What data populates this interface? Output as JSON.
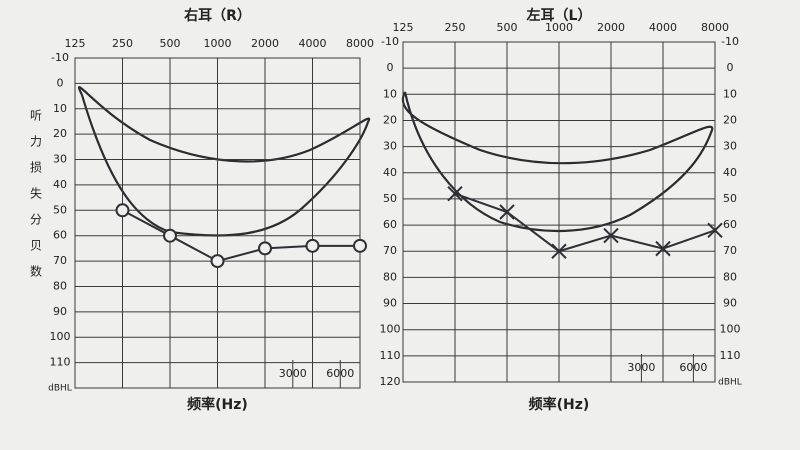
{
  "chart_data": [
    {
      "type": "line",
      "title": "右耳（R）",
      "x_axis_label": "频率(Hz)",
      "y_axis_label": "听力损失分贝数",
      "y_unit_label": "dBHL",
      "x": [
        250,
        500,
        1000,
        2000,
        4000,
        8000
      ],
      "xlim": [
        125,
        8000
      ],
      "xticks": [
        125,
        250,
        500,
        1000,
        2000,
        4000,
        8000
      ],
      "x_log": true,
      "minor_xticks": [
        3000,
        6000
      ],
      "ylim": [
        -10,
        120
      ],
      "y_inverted": true,
      "yticks": [
        -10,
        0,
        10,
        20,
        30,
        40,
        50,
        60,
        70,
        80,
        90,
        100,
        110
      ],
      "grid": true,
      "series": [
        {
          "name": "O",
          "marker": "circle",
          "color": "#2f2f35",
          "values": [
            50,
            60,
            70,
            65,
            64,
            64
          ]
        }
      ]
    },
    {
      "type": "line",
      "title": "左耳（L）",
      "x_axis_label": "频率(Hz)",
      "y_unit_label": "dBHL",
      "x": [
        250,
        500,
        1000,
        2000,
        4000,
        8000
      ],
      "xlim": [
        125,
        8000
      ],
      "xticks": [
        125,
        250,
        500,
        1000,
        2000,
        4000,
        8000
      ],
      "x_log": true,
      "minor_xticks": [
        3000,
        6000
      ],
      "ylim": [
        -10,
        120
      ],
      "y_inverted": true,
      "yticks": [
        -10,
        0,
        10,
        20,
        30,
        40,
        50,
        60,
        70,
        80,
        90,
        100,
        110,
        120
      ],
      "y2lim": [
        -10,
        120
      ],
      "y2ticks": [
        -10,
        0,
        10,
        20,
        30,
        40,
        50,
        60,
        70,
        80,
        90,
        100,
        110
      ],
      "grid": true,
      "series": [
        {
          "name": "X",
          "marker": "cross",
          "color": "#2f2f35",
          "values": [
            48,
            55,
            70,
            64,
            69,
            62
          ]
        }
      ]
    }
  ]
}
